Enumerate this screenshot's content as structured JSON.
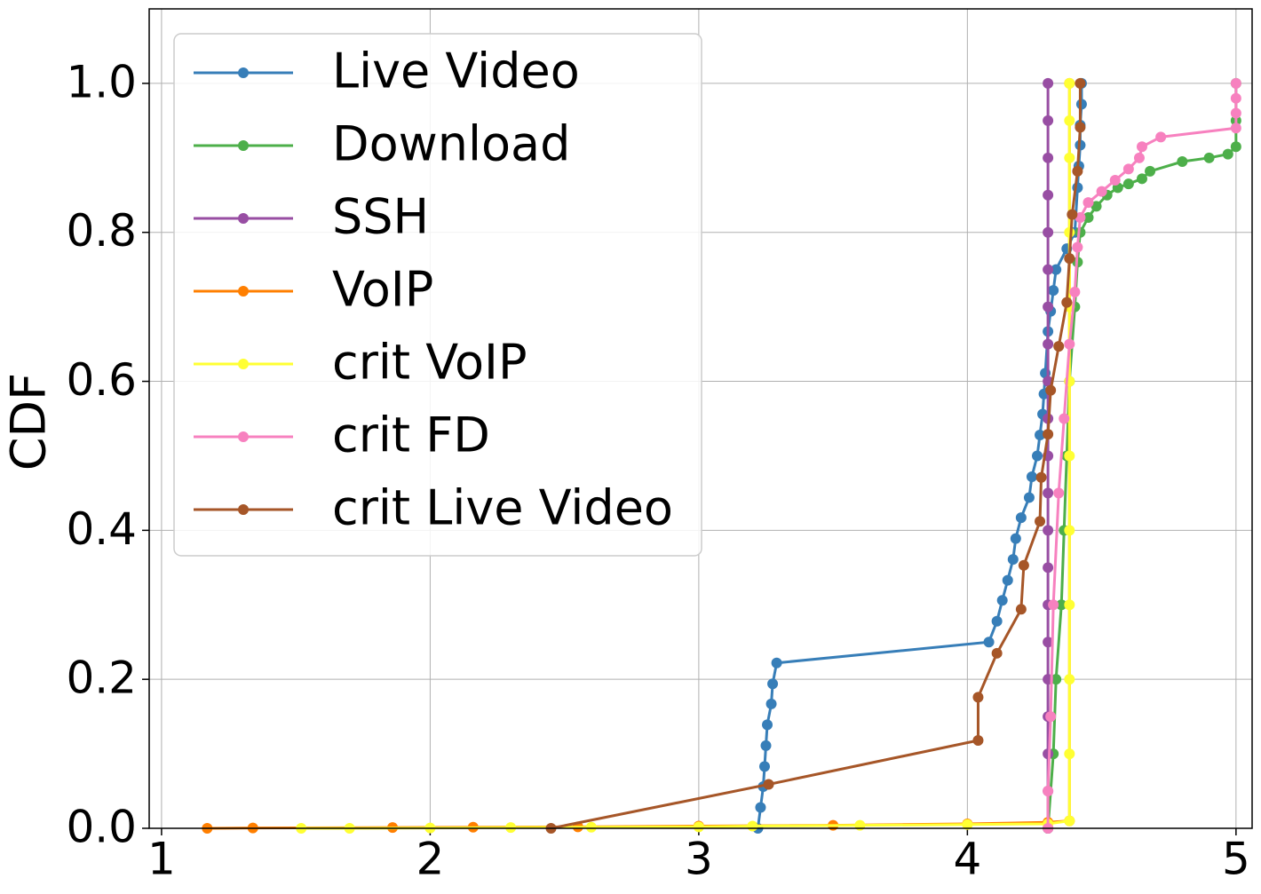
{
  "chart_data": {
    "type": "line",
    "y_label": "CDF",
    "xlim": [
      0.954,
      5.06
    ],
    "ylim": [
      0,
      1.1
    ],
    "xticks": [
      1,
      2,
      3,
      4,
      5
    ],
    "yticks": [
      {
        "value": 0,
        "label": "0.0"
      },
      {
        "value": 0.2,
        "label": "0.2"
      },
      {
        "value": 0.4,
        "label": "0.4"
      },
      {
        "value": 0.6,
        "label": "0.6"
      },
      {
        "value": 0.8,
        "label": "0.8"
      },
      {
        "value": 1.0,
        "label": "1.0"
      }
    ],
    "grid": true,
    "legend": "upper left",
    "series": [
      {
        "name": "Live Video",
        "color": "#377eb8",
        "x": [
          3.22,
          3.23,
          3.24,
          3.245,
          3.25,
          3.255,
          3.27,
          3.275,
          3.29,
          4.08,
          4.11,
          4.13,
          4.15,
          4.17,
          4.18,
          4.2,
          4.23,
          4.24,
          4.26,
          4.27,
          4.28,
          4.285,
          4.29,
          4.3,
          4.31,
          4.32,
          4.33,
          4.37,
          4.4,
          4.41,
          4.415,
          4.42,
          4.42,
          4.425,
          4.425
        ],
        "values": [
          0,
          0.028,
          0.056,
          0.083,
          0.111,
          0.139,
          0.167,
          0.194,
          0.222,
          0.25,
          0.278,
          0.306,
          0.333,
          0.361,
          0.389,
          0.417,
          0.444,
          0.472,
          0.5,
          0.528,
          0.556,
          0.583,
          0.611,
          0.667,
          0.694,
          0.722,
          0.75,
          0.778,
          0.8,
          0.86,
          0.889,
          0.917,
          0.944,
          0.972,
          1.0
        ]
      },
      {
        "name": "Download",
        "color": "#4daf4a",
        "x": [
          4.3,
          4.32,
          4.33,
          4.35,
          4.36,
          4.37,
          4.38,
          4.4,
          4.41,
          4.42,
          4.45,
          4.48,
          4.52,
          4.56,
          4.6,
          4.65,
          4.68,
          4.8,
          4.9,
          4.97,
          5.0,
          5.0,
          5.0
        ],
        "values": [
          0,
          0.1,
          0.2,
          0.3,
          0.4,
          0.5,
          0.6,
          0.7,
          0.76,
          0.8,
          0.82,
          0.835,
          0.85,
          0.86,
          0.865,
          0.872,
          0.882,
          0.895,
          0.9,
          0.905,
          0.915,
          0.95,
          1.0
        ]
      },
      {
        "name": "SSH",
        "color": "#984ea3",
        "x": [
          4.3,
          4.3,
          4.3,
          4.3,
          4.3,
          4.3,
          4.3,
          4.3,
          4.3,
          4.3,
          4.3,
          4.3,
          4.3,
          4.3,
          4.3,
          4.3,
          4.3,
          4.3,
          4.3,
          4.3,
          4.3
        ],
        "values": [
          0,
          0.05,
          0.1,
          0.15,
          0.2,
          0.25,
          0.3,
          0.35,
          0.4,
          0.45,
          0.5,
          0.55,
          0.6,
          0.65,
          0.7,
          0.75,
          0.8,
          0.85,
          0.9,
          0.95,
          1.0
        ]
      },
      {
        "name": "VoIP",
        "color": "#ff7f00",
        "x": [
          1.17,
          1.34,
          1.86,
          2.16,
          2.55,
          3.0,
          3.5,
          4.0,
          4.3,
          4.38,
          4.38
        ],
        "values": [
          0,
          0.0005,
          0.001,
          0.0015,
          0.002,
          0.003,
          0.004,
          0.006,
          0.008,
          0.01,
          1.0
        ]
      },
      {
        "name": "crit VoIP",
        "color": "#ffff33",
        "x": [
          1.52,
          1.7,
          2.0,
          2.3,
          2.6,
          3.0,
          3.2,
          3.6,
          4.0,
          4.3,
          4.38,
          4.38,
          4.38,
          4.38,
          4.38,
          4.38,
          4.38,
          4.38,
          4.38,
          4.38,
          4.38,
          4.38
        ],
        "values": [
          0,
          0,
          0.0005,
          0.001,
          0.0015,
          0.002,
          0.003,
          0.004,
          0.005,
          0.006,
          0.01,
          0.1,
          0.2,
          0.3,
          0.4,
          0.5,
          0.6,
          0.7,
          0.8,
          0.9,
          0.95,
          1.0
        ]
      },
      {
        "name": "crit FD",
        "color": "#f781bf",
        "x": [
          4.3,
          4.3,
          4.31,
          4.32,
          4.34,
          4.36,
          4.38,
          4.4,
          4.41,
          4.42,
          4.45,
          4.5,
          4.55,
          4.6,
          4.64,
          4.65,
          4.72,
          5.0,
          5.0,
          5.0,
          5.0
        ],
        "values": [
          0,
          0.05,
          0.15,
          0.3,
          0.45,
          0.55,
          0.65,
          0.72,
          0.78,
          0.82,
          0.84,
          0.855,
          0.87,
          0.885,
          0.9,
          0.915,
          0.928,
          0.94,
          0.96,
          0.98,
          1.0
        ]
      },
      {
        "name": "crit Live Video",
        "color": "#a65628",
        "x": [
          2.45,
          3.26,
          4.04,
          4.04,
          4.11,
          4.2,
          4.21,
          4.27,
          4.275,
          4.3,
          4.31,
          4.34,
          4.37,
          4.38,
          4.39,
          4.41,
          4.42,
          4.42
        ],
        "values": [
          0,
          0.059,
          0.118,
          0.176,
          0.235,
          0.294,
          0.353,
          0.412,
          0.471,
          0.529,
          0.588,
          0.647,
          0.706,
          0.765,
          0.824,
          0.882,
          0.941,
          1.0
        ]
      }
    ]
  }
}
